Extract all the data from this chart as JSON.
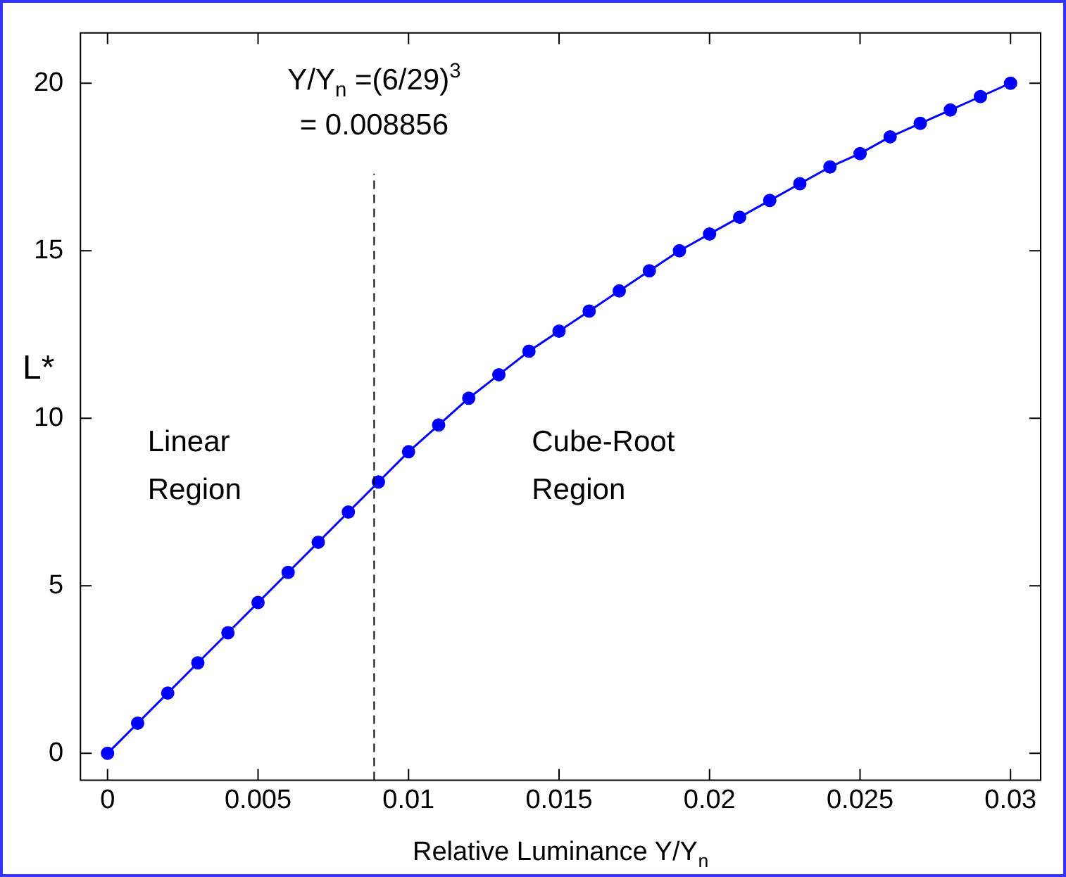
{
  "chart_data": {
    "type": "line",
    "xlabel": "Relative Luminance Y/Y$_{n}$",
    "ylabel": "L*",
    "x": [
      0,
      0.001,
      0.002,
      0.003,
      0.004,
      0.005,
      0.006,
      0.007,
      0.008,
      0.009,
      0.01,
      0.011,
      0.012,
      0.013,
      0.014,
      0.015,
      0.016,
      0.017,
      0.018,
      0.019,
      0.02,
      0.021,
      0.022,
      0.023,
      0.024,
      0.025,
      0.026,
      0.027,
      0.028,
      0.029,
      0.03
    ],
    "series": [
      {
        "color": "#0000ff",
        "values": [
          0,
          0.9,
          1.8,
          2.7,
          3.6,
          4.5,
          5.4,
          6.3,
          7.2,
          8.1,
          9.0,
          9.8,
          10.6,
          11.3,
          12.0,
          12.6,
          13.2,
          13.8,
          14.4,
          15.0,
          15.5,
          16.0,
          16.5,
          17.0,
          17.5,
          17.9,
          18.4,
          18.8,
          19.2,
          19.6,
          20.0
        ]
      }
    ],
    "xlim": [
      -0.0009,
      0.031
    ],
    "ylim": [
      -0.8,
      21.5
    ],
    "xticks": [
      0,
      {
        "value": 0.005,
        "label": "0.005"
      },
      {
        "value": 0.01,
        "label": "0.01"
      },
      {
        "value": 0.015,
        "label": "0.015"
      },
      {
        "value": 0.02,
        "label": "0.02"
      },
      {
        "value": 0.025,
        "label": "0.025"
      },
      {
        "value": 0.03,
        "label": "0.03"
      }
    ],
    "yticks": [
      0,
      5,
      10,
      15,
      20
    ],
    "ref_lines": [
      {
        "axis": "x",
        "value": 0.008856,
        "label": "Y/Y$_{n}$ =(6/29)$^{3}$\n= 0.008856",
        "color": "#000000",
        "line_style": "dashed"
      }
    ],
    "annotations": [
      "Linear\nRegion",
      "Cube-Root\nRegion"
    ],
    "grid": false,
    "legend": false,
    "marker": "circle",
    "line_style": "solid"
  }
}
